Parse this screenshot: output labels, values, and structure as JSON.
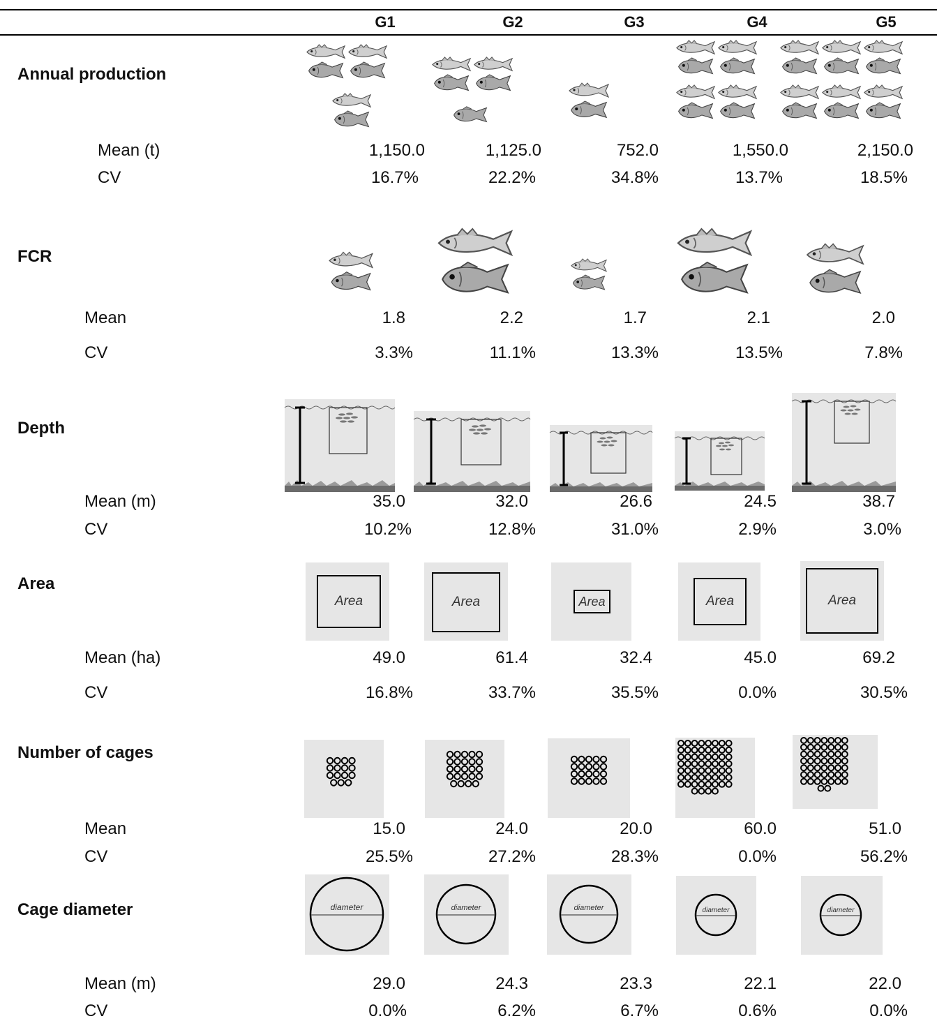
{
  "columns": [
    "G1",
    "G2",
    "G3",
    "G4",
    "G5"
  ],
  "sections": [
    {
      "title": "Annual production",
      "rows": [
        {
          "label": "Mean (t)",
          "values": [
            "1,150.0",
            "1,125.0",
            "752.0",
            "1,550.0",
            "2,150.0"
          ]
        },
        {
          "label": "CV",
          "values": [
            "16.7%",
            "22.2%",
            "34.8%",
            "13.7%",
            "18.5%"
          ]
        }
      ]
    },
    {
      "title": "FCR",
      "rows": [
        {
          "label": "Mean",
          "values": [
            "1.8",
            "2.2",
            "1.7",
            "2.1",
            "2.0"
          ]
        },
        {
          "label": "CV",
          "values": [
            "3.3%",
            "11.1%",
            "13.3%",
            "13.5%",
            "7.8%"
          ]
        }
      ]
    },
    {
      "title": "Depth",
      "rows": [
        {
          "label": "Mean (m)",
          "values": [
            "35.0",
            "32.0",
            "26.6",
            "24.5",
            "38.7"
          ]
        },
        {
          "label": "CV",
          "values": [
            "10.2%",
            "12.8%",
            "31.0%",
            "2.9%",
            "3.0%"
          ]
        }
      ]
    },
    {
      "title": "Area",
      "box_label": "Area",
      "rows": [
        {
          "label": "Mean (ha)",
          "values": [
            "49.0",
            "61.4",
            "32.4",
            "45.0",
            "69.2"
          ]
        },
        {
          "label": "CV",
          "values": [
            "16.8%",
            "33.7%",
            "35.5%",
            "0.0%",
            "30.5%"
          ]
        }
      ]
    },
    {
      "title": "Number of cages",
      "rows": [
        {
          "label": "Mean",
          "values": [
            "15.0",
            "24.0",
            "20.0",
            "60.0",
            "51.0"
          ]
        },
        {
          "label": "CV",
          "values": [
            "25.5%",
            "27.2%",
            "28.3%",
            "0.0%",
            "56.2%"
          ]
        }
      ]
    },
    {
      "title": "Cage diameter",
      "circle_label": "diameter",
      "rows": [
        {
          "label": "Mean (m)",
          "values": [
            "29.0",
            "24.3",
            "23.3",
            "22.1",
            "22.0"
          ]
        },
        {
          "label": "CV",
          "values": [
            "0.0%",
            "6.2%",
            "6.7%",
            "0.6%",
            "0.0%"
          ]
        }
      ]
    }
  ],
  "icons": {
    "production": "fish-group-icon",
    "fcr": "fish-pair-icon",
    "depth": "cage-depth-icon",
    "area": "area-square-icon",
    "cages": "cage-grid-icon",
    "diameter": "cage-diameter-icon"
  }
}
